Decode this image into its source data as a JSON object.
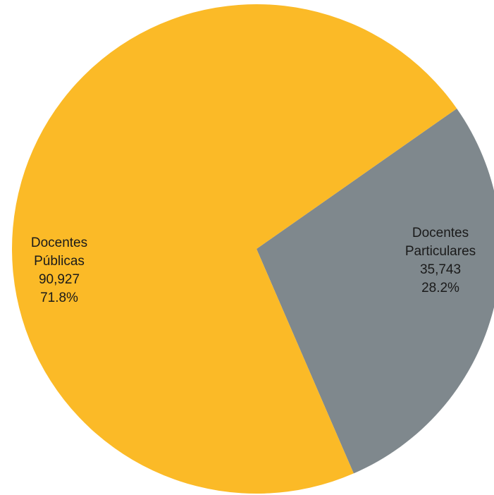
{
  "chart_data": {
    "type": "pie",
    "title": "",
    "slices": [
      {
        "label_lines": [
          "Docentes",
          "Públicas"
        ],
        "value": 90927,
        "value_text": "90,927",
        "percent": 71.8,
        "percent_text": "71.8%",
        "color": "#FBBA27"
      },
      {
        "label_lines": [
          "Docentes",
          "Particulares"
        ],
        "value": 35743,
        "value_text": "35,743",
        "percent": 28.2,
        "percent_text": "28.2%",
        "color": "#7F888D"
      }
    ],
    "legend": "none"
  }
}
